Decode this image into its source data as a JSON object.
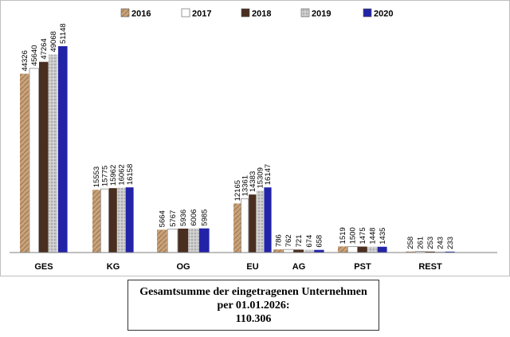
{
  "chart_data": {
    "type": "bar",
    "categories": [
      "GES",
      "KG",
      "OG",
      "EU",
      "AG",
      "PST",
      "REST"
    ],
    "series": [
      {
        "name": "2016",
        "values": [
          44326,
          15553,
          5664,
          12165,
          786,
          1519,
          258
        ],
        "color": "#c8a27a"
      },
      {
        "name": "2017",
        "values": [
          45640,
          15775,
          5767,
          13361,
          762,
          1500,
          261
        ],
        "color": "#ffffff"
      },
      {
        "name": "2018",
        "values": [
          47264,
          15962,
          5936,
          14383,
          721,
          1475,
          253
        ],
        "color": "#4a2e1f"
      },
      {
        "name": "2019",
        "values": [
          49068,
          16062,
          6006,
          15309,
          674,
          1448,
          243
        ],
        "color": "#bdbdbd"
      },
      {
        "name": "2020",
        "values": [
          51148,
          16158,
          5985,
          16147,
          658,
          1435,
          233
        ],
        "color": "#2323a8"
      }
    ],
    "ylim": [
      0,
      56000
    ],
    "grid": false,
    "legend_position": "top"
  },
  "summary": {
    "line1": "Gesamtsumme der eingetragenen Unternehmen",
    "line2": "per 01.01.2026:",
    "line3": "110.306"
  }
}
